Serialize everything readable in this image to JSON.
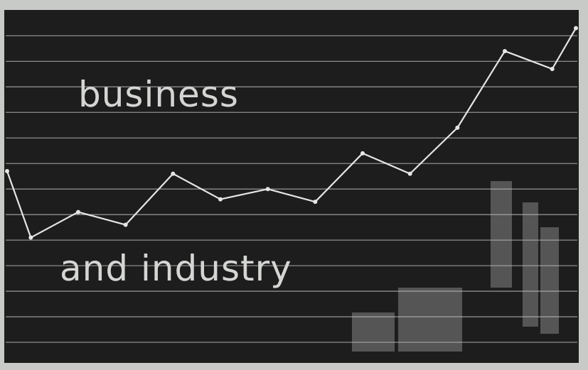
{
  "chart_data": {
    "type": "line",
    "title": "business",
    "subtitle": "and industry",
    "x": [
      0,
      0.5,
      1.5,
      2.5,
      3.5,
      4.5,
      5.5,
      6.5,
      7.5,
      8.5,
      9.5,
      10.5,
      11.5,
      12
    ],
    "values": [
      7.7,
      5.1,
      6.1,
      5.6,
      7.6,
      6.6,
      7.0,
      6.5,
      8.4,
      7.6,
      9.4,
      12.4,
      11.7,
      13.3
    ],
    "color": "#e6e6e6",
    "xlim": [
      0,
      12
    ],
    "ylim": [
      0.25,
      13.9
    ],
    "yticks": [
      1,
      2,
      3,
      4,
      5,
      6,
      7,
      8,
      9,
      10,
      11,
      12,
      13
    ],
    "grid": true
  }
}
